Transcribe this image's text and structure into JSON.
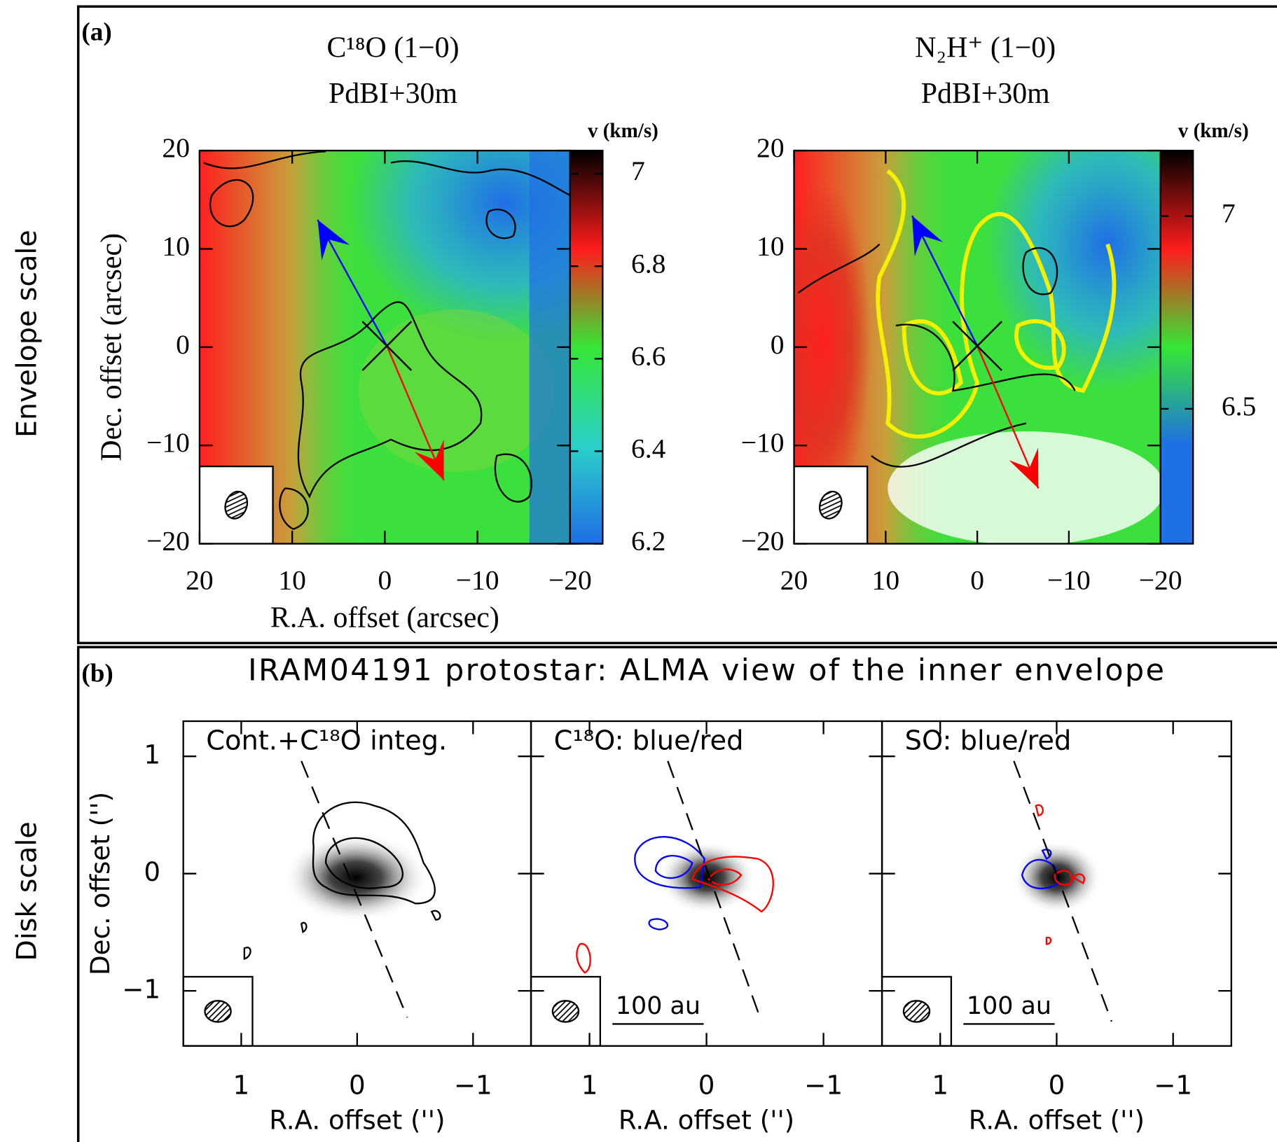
{
  "row_labels": [
    "Envelope scale",
    "Disk scale"
  ],
  "panel_labels": [
    "(a)",
    "(b)"
  ],
  "figure_b_title": "IRAM04191 protostar: ALMA view of the inner envelope",
  "chart_data": [
    {
      "type": "velocity-map",
      "title": "C¹⁸O (1−0)",
      "subtitle": "PdBI+30m",
      "xlabel": "R.A. offset (arcsec)",
      "ylabel": "Dec. offset (arcsec)",
      "xlim": [
        20,
        -20
      ],
      "ylim": [
        -20,
        20
      ],
      "xticks": [
        20,
        10,
        0,
        {
          "value": -10,
          "label": "−10"
        },
        {
          "value": -20,
          "label": "−20"
        }
      ],
      "yticks": [
        {
          "value": -20,
          "label": "−20"
        },
        {
          "value": -10,
          "label": "−10"
        },
        0,
        10,
        20
      ],
      "colorbar_label": "v (km/s)",
      "clim": [
        6.2,
        7.05
      ],
      "cticks": [
        6.2,
        6.4,
        6.6,
        6.8,
        7
      ],
      "colormap": [
        "#1f6fe6",
        "#2bd0c8",
        "#35e635",
        "#ff1c1c",
        "#000000"
      ]
    },
    {
      "type": "velocity-map",
      "title": "N₂H⁺ (1−0)",
      "subtitle": "PdBI+30m",
      "xlim": [
        20,
        -20
      ],
      "ylim": [
        -20,
        20
      ],
      "xticks": [
        20,
        10,
        0,
        {
          "value": -10,
          "label": "−10"
        },
        {
          "value": -20,
          "label": "−20"
        }
      ],
      "yticks": [
        {
          "value": -20,
          "label": "−20"
        },
        {
          "value": -10,
          "label": "−10"
        },
        0,
        10,
        20
      ],
      "colorbar_label": "v (km/s)",
      "clim": [
        6.15,
        7.17
      ],
      "cticks": [
        6.5,
        7
      ],
      "colormap": [
        "#1f6fe6",
        "#1f6fe6",
        "#35e635",
        "#ff1c1c",
        "#000000"
      ]
    },
    {
      "type": "intensity-map",
      "title": "Cont.+C¹⁸O integ.",
      "xlabel": "R.A. offset ('')",
      "ylabel": "Dec. offset ('')",
      "xlim": [
        1.5,
        -1.5
      ],
      "ylim": [
        -1.47,
        1.3
      ],
      "xticks": [
        1,
        0,
        {
          "value": -1,
          "label": "−1"
        }
      ],
      "yticks": [
        {
          "value": -1,
          "label": "−1"
        },
        0,
        1
      ]
    },
    {
      "type": "intensity-map",
      "title": "C¹⁸O: blue/red",
      "xlabel": "R.A. offset ('')",
      "scale_bar": "100 au",
      "xlim": [
        1.5,
        -1.5
      ],
      "ylim": [
        -1.47,
        1.3
      ],
      "xticks": [
        1,
        0,
        {
          "value": -1,
          "label": "−1"
        }
      ]
    },
    {
      "type": "intensity-map",
      "title": "SO: blue/red",
      "xlabel": "R.A. offset ('')",
      "scale_bar": "100 au",
      "xlim": [
        1.5,
        -1.5
      ],
      "ylim": [
        -1.47,
        1.3
      ],
      "xticks": [
        1,
        0,
        {
          "value": -1,
          "label": "−1"
        }
      ]
    }
  ]
}
